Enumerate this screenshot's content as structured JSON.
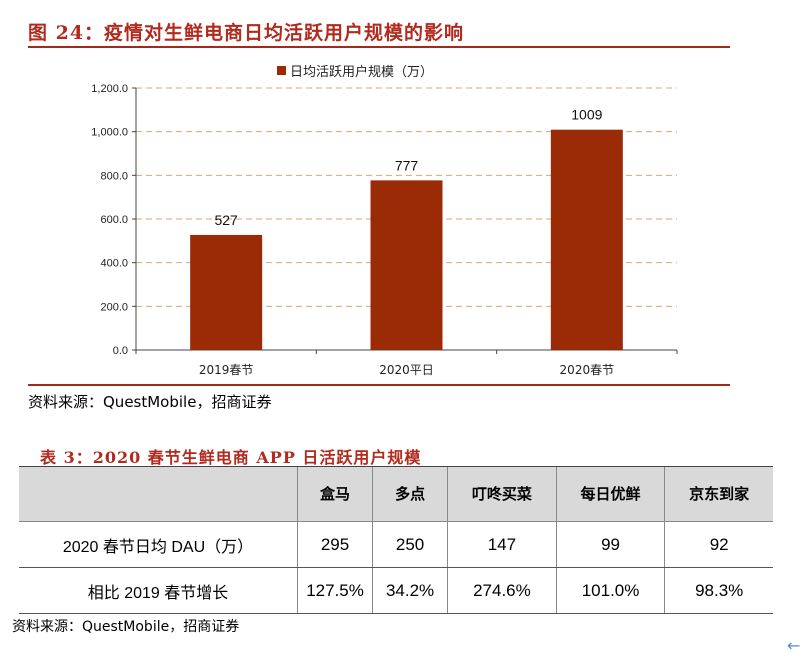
{
  "figure": {
    "title": "图 24：疫情对生鲜电商日均活跃用户规模的影响",
    "source": "资料来源：QuestMobile，招商证券"
  },
  "colors": {
    "accent": "#b22a1e",
    "bar": "#9b2a07",
    "rule": "#a32a1b",
    "grid": "#d9a679"
  },
  "chart_data": {
    "type": "bar",
    "categories": [
      "2019春节",
      "2020平日",
      "2020春节"
    ],
    "series": [
      {
        "name": "日均活跃用户规模（万）",
        "values": [
          527,
          777,
          1009
        ]
      }
    ],
    "data_labels": [
      "527",
      "777",
      "1009"
    ],
    "ylim": [
      0,
      1200
    ],
    "yticks": [
      "0.0",
      "200.0",
      "400.0",
      "600.0",
      "800.0",
      "1,000.0",
      "1,200.0"
    ],
    "xlabel": "",
    "ylabel": "",
    "grid": true,
    "legend": "top-center"
  },
  "table": {
    "title": "表 3：2020 春节生鲜电商 APP 日活跃用户规模",
    "headers": [
      "",
      "盒马",
      "多点",
      "叮咚买菜",
      "每日优鲜",
      "京东到家"
    ],
    "rows": [
      [
        "2020 春节日均 DAU（万）",
        "295",
        "250",
        "147",
        "99",
        "92"
      ],
      [
        "相比 2019 春节增长",
        "127.5%",
        "34.2%",
        "274.6%",
        "101.0%",
        "98.3%"
      ]
    ],
    "source": "资料来源：QuestMobile，招商证券"
  },
  "icons": {
    "corner": "back-arrow-icon"
  }
}
